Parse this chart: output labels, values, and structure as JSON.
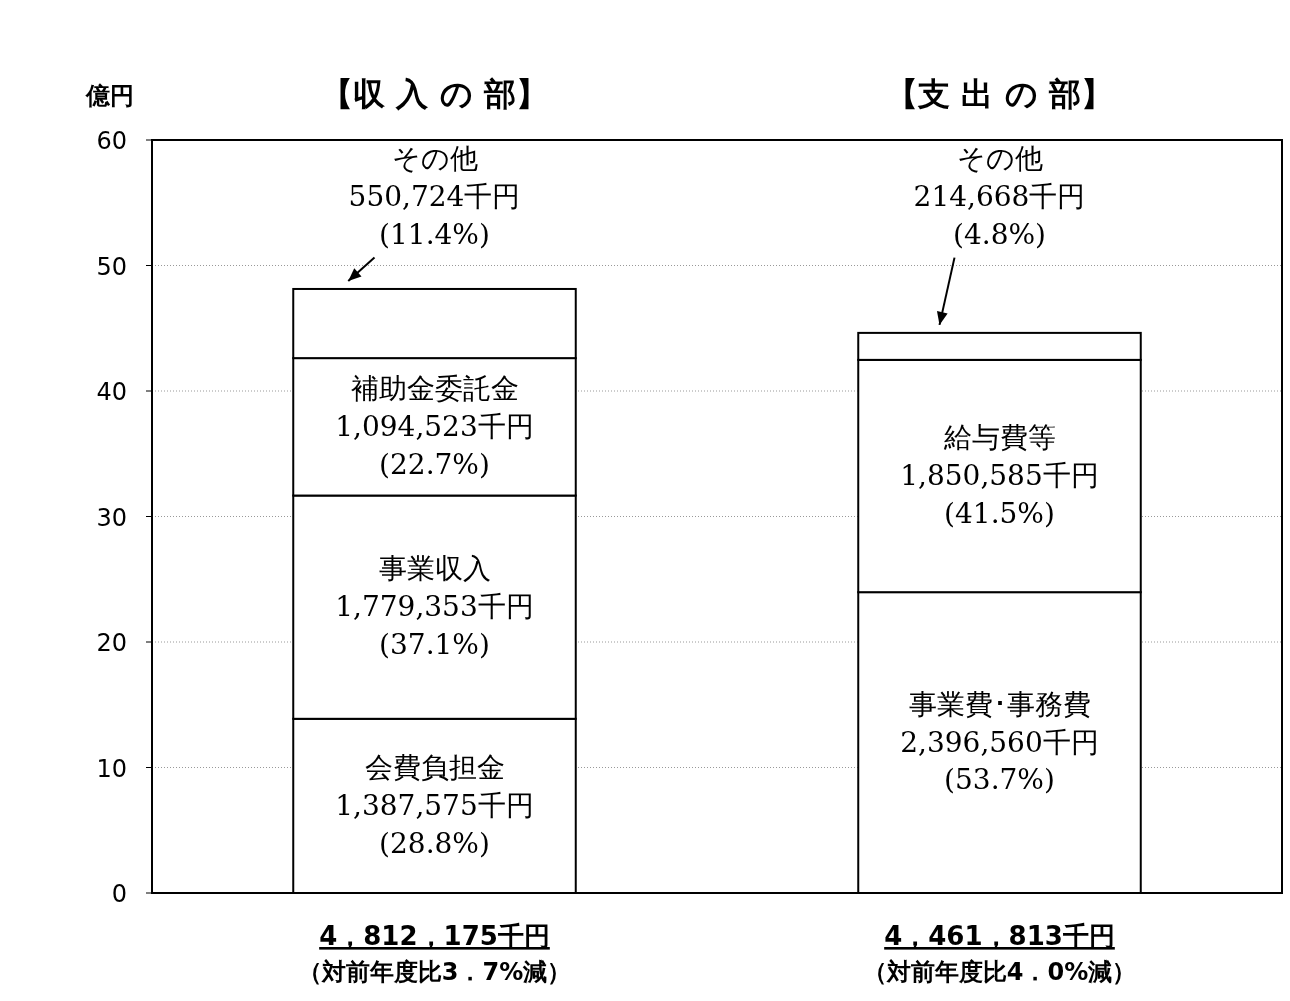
{
  "chart_data": {
    "type": "bar",
    "stacked": true,
    "ylabel": "億円",
    "ylim": [
      0,
      60
    ],
    "yticks": [
      0,
      10,
      20,
      30,
      40,
      50,
      60
    ],
    "grid": "y",
    "categories": [
      "4，812，175千円",
      "4，461，813千円"
    ],
    "annotations": [
      "【収 入 の 部】",
      "【支 出 の 部】",
      "（対前年度比3．7%減）",
      "（対前年度比4．0%減）",
      "会費負担金\n1,387,575千円\n(28.8%)",
      "事業費･事務費\n2,396,560千円\n(53.7%)",
      "事業収入\n1,779,353千円\n(37.1%)",
      "給与費等\n1,850,585千円\n(41.5%)",
      "補助金委託金\n1,094,523千円\n(22.7%)",
      "その他\n214,668千円\n(4.8%)",
      "その他\n550,724千円\n(11.4%)"
    ],
    "series": [
      {
        "color": "#ffffff",
        "values": [
          13.88,
          23.97
        ]
      },
      {
        "color": "#ffffff",
        "values": [
          17.79,
          18.51
        ]
      },
      {
        "color": "#ffffff",
        "values": [
          10.95,
          2.15
        ]
      },
      {
        "color": "#ffffff",
        "values": [
          5.51,
          null
        ]
      }
    ]
  }
}
